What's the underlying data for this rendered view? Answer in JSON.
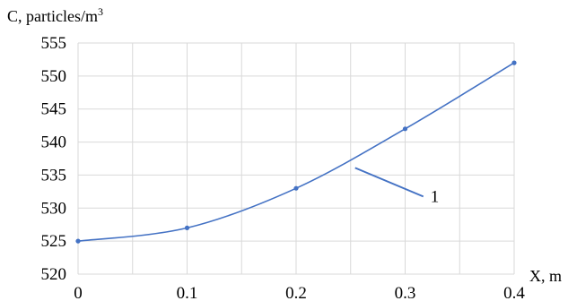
{
  "chart_data": {
    "type": "line",
    "title": "",
    "ylabel": "C, particles/m",
    "ylabel_superscript": "3",
    "xlabel": "X, m",
    "x": [
      0,
      0.1,
      0.2,
      0.3,
      0.4
    ],
    "x_tick_labels": [
      "0",
      "0.1",
      "0.2",
      "0.3",
      "0.4"
    ],
    "y_ticks": [
      520,
      525,
      530,
      535,
      540,
      545,
      550,
      555
    ],
    "y_tick_labels": [
      "520",
      "525",
      "530",
      "535",
      "540",
      "545",
      "550",
      "555"
    ],
    "xlim": [
      0,
      0.4
    ],
    "ylim": [
      520,
      555
    ],
    "grid": true,
    "smooth": true,
    "series": [
      {
        "values": [
          525,
          527,
          533,
          542,
          552
        ],
        "color": "#4472c4",
        "marker": "circle"
      }
    ],
    "annotations": [
      {
        "text": "1",
        "points_to_series": 0,
        "at_x": 0.25,
        "at_y": 536.5
      }
    ]
  }
}
